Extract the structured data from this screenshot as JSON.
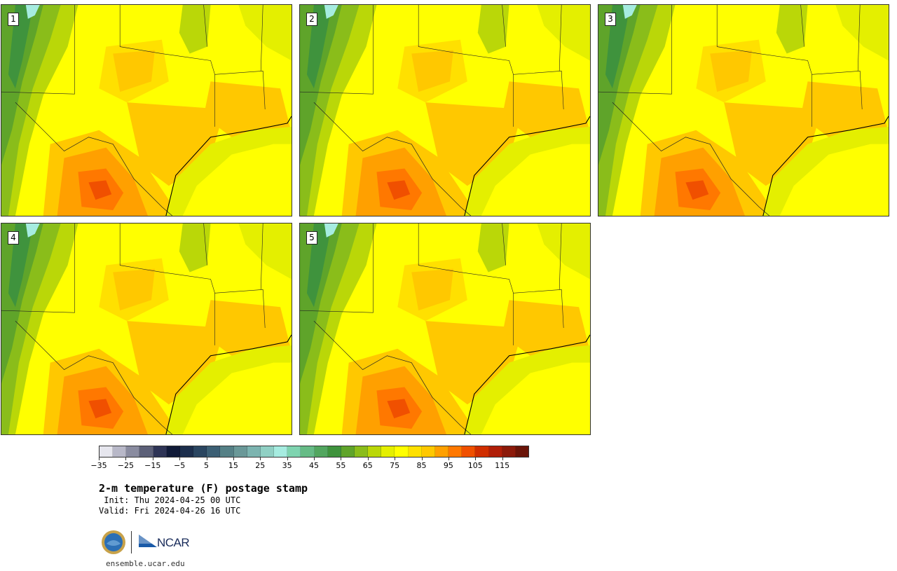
{
  "panels": [
    {
      "label": "1"
    },
    {
      "label": "2"
    },
    {
      "label": "3"
    },
    {
      "label": "4"
    },
    {
      "label": "5"
    }
  ],
  "colorbar": {
    "colors": [
      "#e6e6ee",
      "#b8b8c8",
      "#8a8ca0",
      "#5c6078",
      "#2e3456",
      "#101a38",
      "#1c2e4c",
      "#2a4560",
      "#3c5f74",
      "#558086",
      "#6a9898",
      "#7cb4b0",
      "#90d0c4",
      "#a6ece0",
      "#7fd4b0",
      "#66bb86",
      "#52a65f",
      "#3f933d",
      "#5fa42a",
      "#8abd1a",
      "#bad708",
      "#e4ef00",
      "#ffff00",
      "#ffe000",
      "#ffc800",
      "#ffa000",
      "#ff7800",
      "#f05000",
      "#d02e00",
      "#b01e08",
      "#8c1a0a",
      "#6a1408"
    ],
    "tick_labels": [
      "−35",
      "−25",
      "−15",
      "−5",
      "5",
      "15",
      "25",
      "35",
      "45",
      "55",
      "65",
      "75",
      "85",
      "95",
      "105",
      "115"
    ]
  },
  "title": "2-m temperature (F) postage stamp",
  "init": " Init: Thu 2024-04-25 00 UTC",
  "valid": "Valid: Fri 2024-04-26 16 UTC",
  "logos": {
    "ncar": "NCAR",
    "nsf": "NSF"
  },
  "site": "ensemble.ucar.edu"
}
